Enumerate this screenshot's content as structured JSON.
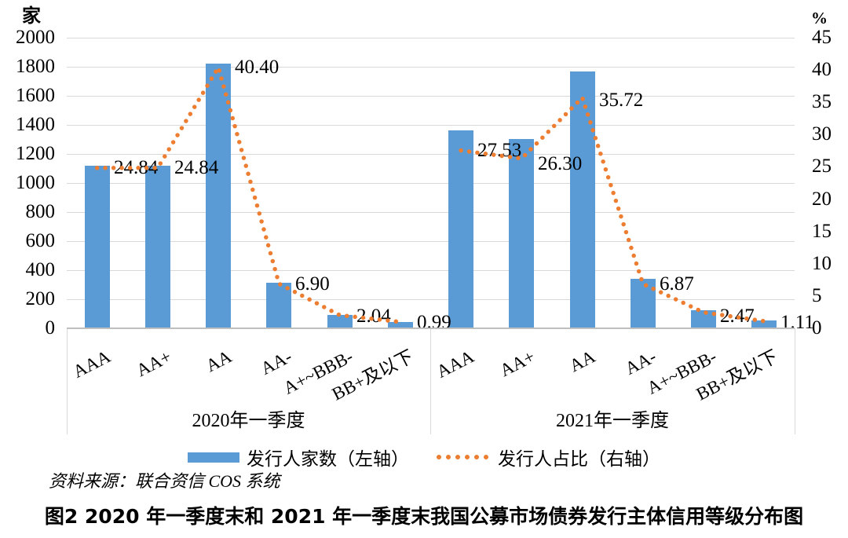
{
  "chart_data": {
    "type": "bar-line-combo",
    "title": "图2  2020 年一季度末和 2021 年一季度末我国公募市场债券发行主体信用等级分布图",
    "source_note": "资料来源：联合资信 COS 系统",
    "grid": "on",
    "legend_position": "bottom",
    "left_axis": {
      "unit": "家",
      "min": 0,
      "max": 2000,
      "step": 200,
      "tick_labels": [
        "2000",
        "1800",
        "1600",
        "1400",
        "1200",
        "1000",
        "800",
        "600",
        "400",
        "200",
        "0"
      ]
    },
    "right_axis": {
      "unit": "%",
      "min": 0,
      "max": 45,
      "step": 5,
      "tick_labels": [
        "45",
        "40",
        "35",
        "30",
        "25",
        "20",
        "15",
        "10",
        "5",
        "0"
      ]
    },
    "categories_per_group": [
      "AAA",
      "AA+",
      "AA",
      "AA-",
      "A+~BBB-",
      "BB+及以下"
    ],
    "groups": [
      {
        "label": "2020年一季度",
        "bar_values": [
          1120,
          1120,
          1822,
          311,
          92,
          45
        ],
        "line_values": [
          24.84,
          24.84,
          40.4,
          6.9,
          2.04,
          0.99
        ],
        "line_labels": [
          "24.84",
          "24.84",
          "40.40",
          "6.90",
          "2.04",
          "0.99"
        ],
        "label_dy": [
          0,
          0,
          0,
          1,
          2,
          1
        ]
      },
      {
        "label": "2021年一季度",
        "bar_values": [
          1363,
          1302,
          1768,
          340,
          122,
          55
        ],
        "line_values": [
          27.53,
          26.3,
          35.72,
          6.87,
          2.47,
          1.11
        ],
        "line_labels": [
          "27.53",
          "26.30",
          "35.72",
          "6.87",
          "2.47",
          "1.11"
        ],
        "label_dy": [
          0,
          7,
          4,
          0,
          5,
          2
        ]
      }
    ],
    "legend": [
      {
        "label": "发行人家数（左轴）",
        "swatch": "bar",
        "color": "#5b9bd5"
      },
      {
        "label": "发行人占比（右轴）",
        "swatch": "dotted-line",
        "color": "#ed7d31"
      }
    ],
    "colors": {
      "bar": "#5b9bd5",
      "line": "#ed7d31",
      "gridline": "#d9d9d9",
      "axis": "#bfbfbf"
    }
  }
}
